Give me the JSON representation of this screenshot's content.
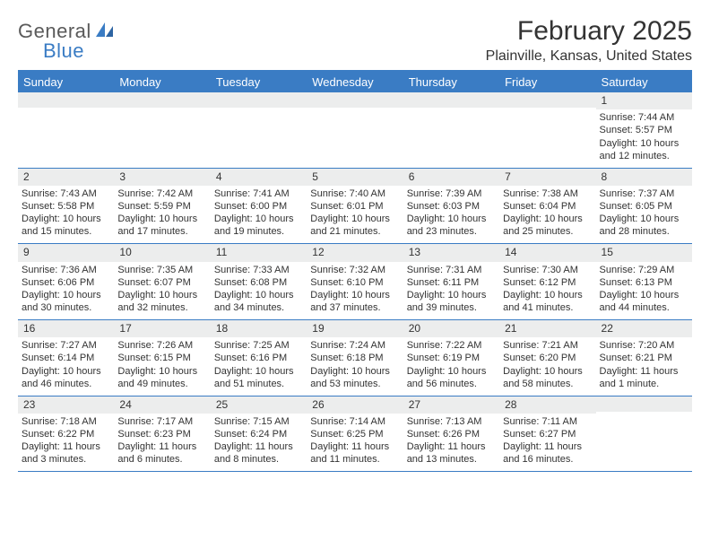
{
  "brand": {
    "line1": "General",
    "line2": "Blue"
  },
  "title": "February 2025",
  "location": "Plainville, Kansas, United States",
  "colors": {
    "accent": "#3a7cc4",
    "header_bg": "#3a7cc4",
    "header_text": "#ffffff",
    "daynum_bg": "#eceded",
    "text": "#333333",
    "background": "#ffffff",
    "logo_gray": "#5a5a5a"
  },
  "day_names": [
    "Sunday",
    "Monday",
    "Tuesday",
    "Wednesday",
    "Thursday",
    "Friday",
    "Saturday"
  ],
  "weeks": [
    [
      {
        "n": "",
        "lines": []
      },
      {
        "n": "",
        "lines": []
      },
      {
        "n": "",
        "lines": []
      },
      {
        "n": "",
        "lines": []
      },
      {
        "n": "",
        "lines": []
      },
      {
        "n": "",
        "lines": []
      },
      {
        "n": "1",
        "lines": [
          "Sunrise: 7:44 AM",
          "Sunset: 5:57 PM",
          "Daylight: 10 hours and 12 minutes."
        ]
      }
    ],
    [
      {
        "n": "2",
        "lines": [
          "Sunrise: 7:43 AM",
          "Sunset: 5:58 PM",
          "Daylight: 10 hours and 15 minutes."
        ]
      },
      {
        "n": "3",
        "lines": [
          "Sunrise: 7:42 AM",
          "Sunset: 5:59 PM",
          "Daylight: 10 hours and 17 minutes."
        ]
      },
      {
        "n": "4",
        "lines": [
          "Sunrise: 7:41 AM",
          "Sunset: 6:00 PM",
          "Daylight: 10 hours and 19 minutes."
        ]
      },
      {
        "n": "5",
        "lines": [
          "Sunrise: 7:40 AM",
          "Sunset: 6:01 PM",
          "Daylight: 10 hours and 21 minutes."
        ]
      },
      {
        "n": "6",
        "lines": [
          "Sunrise: 7:39 AM",
          "Sunset: 6:03 PM",
          "Daylight: 10 hours and 23 minutes."
        ]
      },
      {
        "n": "7",
        "lines": [
          "Sunrise: 7:38 AM",
          "Sunset: 6:04 PM",
          "Daylight: 10 hours and 25 minutes."
        ]
      },
      {
        "n": "8",
        "lines": [
          "Sunrise: 7:37 AM",
          "Sunset: 6:05 PM",
          "Daylight: 10 hours and 28 minutes."
        ]
      }
    ],
    [
      {
        "n": "9",
        "lines": [
          "Sunrise: 7:36 AM",
          "Sunset: 6:06 PM",
          "Daylight: 10 hours and 30 minutes."
        ]
      },
      {
        "n": "10",
        "lines": [
          "Sunrise: 7:35 AM",
          "Sunset: 6:07 PM",
          "Daylight: 10 hours and 32 minutes."
        ]
      },
      {
        "n": "11",
        "lines": [
          "Sunrise: 7:33 AM",
          "Sunset: 6:08 PM",
          "Daylight: 10 hours and 34 minutes."
        ]
      },
      {
        "n": "12",
        "lines": [
          "Sunrise: 7:32 AM",
          "Sunset: 6:10 PM",
          "Daylight: 10 hours and 37 minutes."
        ]
      },
      {
        "n": "13",
        "lines": [
          "Sunrise: 7:31 AM",
          "Sunset: 6:11 PM",
          "Daylight: 10 hours and 39 minutes."
        ]
      },
      {
        "n": "14",
        "lines": [
          "Sunrise: 7:30 AM",
          "Sunset: 6:12 PM",
          "Daylight: 10 hours and 41 minutes."
        ]
      },
      {
        "n": "15",
        "lines": [
          "Sunrise: 7:29 AM",
          "Sunset: 6:13 PM",
          "Daylight: 10 hours and 44 minutes."
        ]
      }
    ],
    [
      {
        "n": "16",
        "lines": [
          "Sunrise: 7:27 AM",
          "Sunset: 6:14 PM",
          "Daylight: 10 hours and 46 minutes."
        ]
      },
      {
        "n": "17",
        "lines": [
          "Sunrise: 7:26 AM",
          "Sunset: 6:15 PM",
          "Daylight: 10 hours and 49 minutes."
        ]
      },
      {
        "n": "18",
        "lines": [
          "Sunrise: 7:25 AM",
          "Sunset: 6:16 PM",
          "Daylight: 10 hours and 51 minutes."
        ]
      },
      {
        "n": "19",
        "lines": [
          "Sunrise: 7:24 AM",
          "Sunset: 6:18 PM",
          "Daylight: 10 hours and 53 minutes."
        ]
      },
      {
        "n": "20",
        "lines": [
          "Sunrise: 7:22 AM",
          "Sunset: 6:19 PM",
          "Daylight: 10 hours and 56 minutes."
        ]
      },
      {
        "n": "21",
        "lines": [
          "Sunrise: 7:21 AM",
          "Sunset: 6:20 PM",
          "Daylight: 10 hours and 58 minutes."
        ]
      },
      {
        "n": "22",
        "lines": [
          "Sunrise: 7:20 AM",
          "Sunset: 6:21 PM",
          "Daylight: 11 hours and 1 minute."
        ]
      }
    ],
    [
      {
        "n": "23",
        "lines": [
          "Sunrise: 7:18 AM",
          "Sunset: 6:22 PM",
          "Daylight: 11 hours and 3 minutes."
        ]
      },
      {
        "n": "24",
        "lines": [
          "Sunrise: 7:17 AM",
          "Sunset: 6:23 PM",
          "Daylight: 11 hours and 6 minutes."
        ]
      },
      {
        "n": "25",
        "lines": [
          "Sunrise: 7:15 AM",
          "Sunset: 6:24 PM",
          "Daylight: 11 hours and 8 minutes."
        ]
      },
      {
        "n": "26",
        "lines": [
          "Sunrise: 7:14 AM",
          "Sunset: 6:25 PM",
          "Daylight: 11 hours and 11 minutes."
        ]
      },
      {
        "n": "27",
        "lines": [
          "Sunrise: 7:13 AM",
          "Sunset: 6:26 PM",
          "Daylight: 11 hours and 13 minutes."
        ]
      },
      {
        "n": "28",
        "lines": [
          "Sunrise: 7:11 AM",
          "Sunset: 6:27 PM",
          "Daylight: 11 hours and 16 minutes."
        ]
      },
      {
        "n": "",
        "lines": []
      }
    ]
  ]
}
